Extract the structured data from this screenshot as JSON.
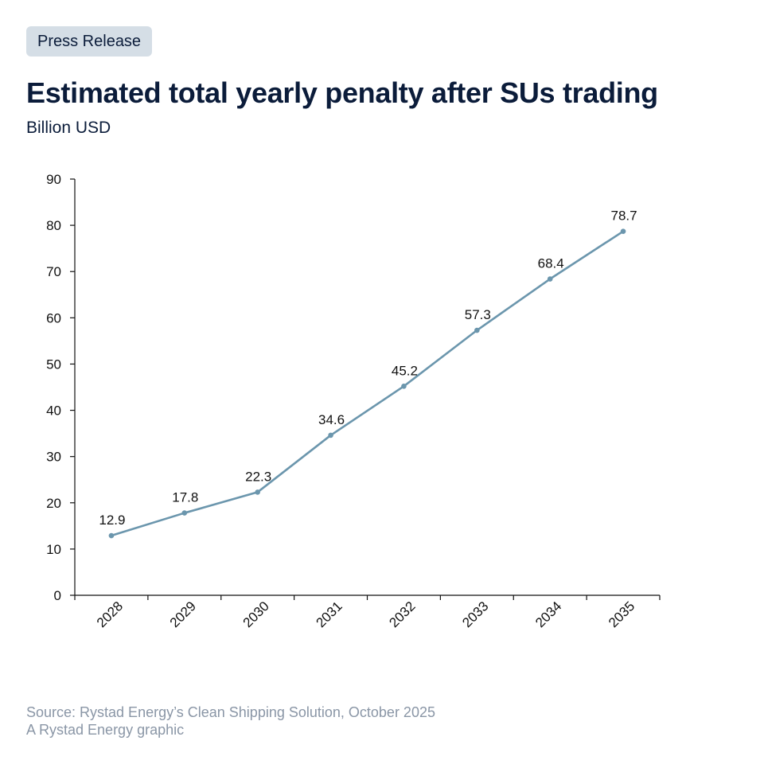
{
  "badge": "Press Release",
  "title": "Estimated total yearly penalty after SUs trading",
  "subtitle": "Billion USD",
  "footer": {
    "source": "Source: Rystad Energy’s Clean Shipping Solution, October 2025",
    "credit": "A Rystad Energy graphic"
  },
  "colors": {
    "line": "#6b96ad",
    "axis": "#111111",
    "title": "#0b1c3a",
    "badge_bg": "#d5dee6",
    "footer": "#8a96a6"
  },
  "chart_data": {
    "type": "line",
    "title": "Estimated total yearly penalty after SUs trading",
    "subtitle": "Billion USD",
    "xlabel": "",
    "ylabel": "Billion USD",
    "categories": [
      "2028",
      "2029",
      "2030",
      "2031",
      "2032",
      "2033",
      "2034",
      "2035"
    ],
    "series": [
      {
        "name": "Estimated total yearly penalty",
        "values": [
          12.9,
          17.8,
          22.3,
          34.6,
          45.2,
          57.3,
          68.4,
          78.7
        ]
      }
    ],
    "data_labels": [
      "12.9",
      "17.8",
      "22.3",
      "34.6",
      "45.2",
      "57.3",
      "68.4",
      "78.7"
    ],
    "ylim": [
      0,
      90
    ],
    "yticks": [
      0,
      10,
      20,
      30,
      40,
      50,
      60,
      70,
      80,
      90
    ],
    "grid": false,
    "legend": "none",
    "x_tick_rotation": "-45deg"
  }
}
